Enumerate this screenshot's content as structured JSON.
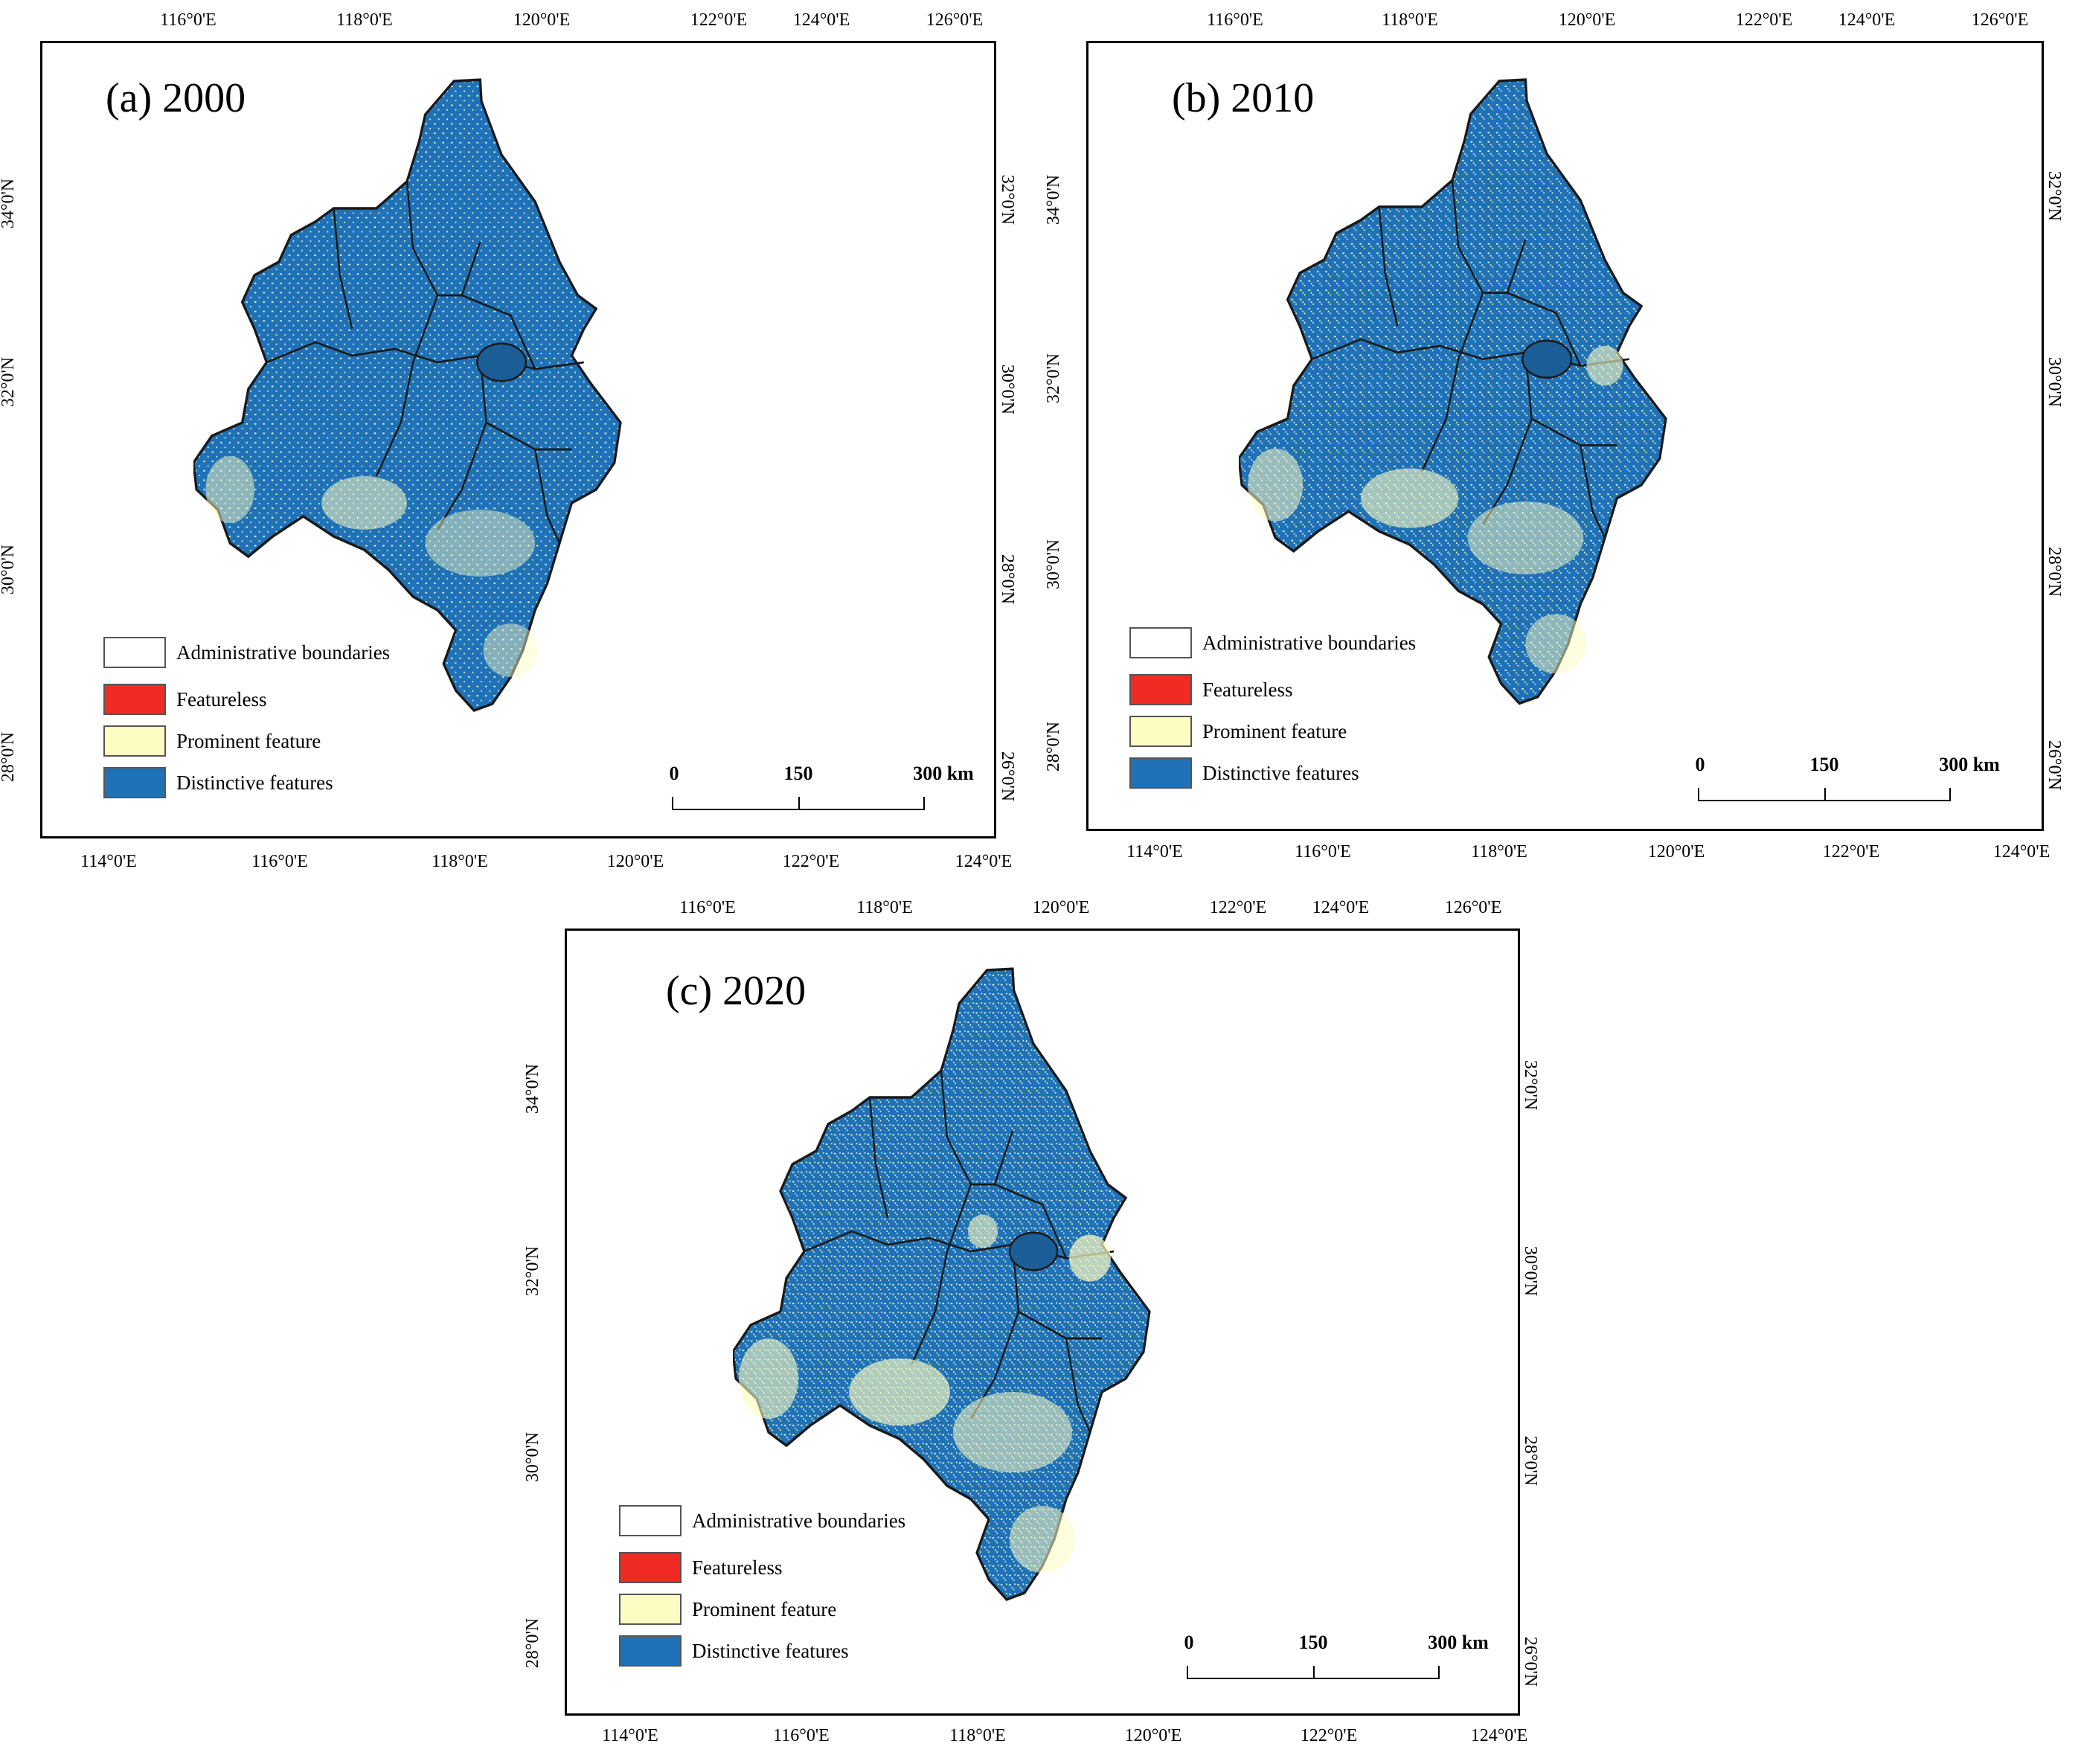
{
  "panels": [
    {
      "title": "(a) 2000",
      "top_ticks": [
        "116°0'E",
        "118°0'E",
        "120°0'E",
        "122°0'E",
        "124°0'E",
        "126°0'E"
      ],
      "bottom_ticks": [
        "114°0'E",
        "116°0'E",
        "118°0'E",
        "120°0'E",
        "122°0'E",
        "124°0'E"
      ],
      "left_ticks": [
        "34°0'N",
        "32°0'N",
        "30°0'N",
        "28°0'N"
      ],
      "right_ticks": [
        "32°0'N",
        "30°0'N",
        "28°0'N",
        "26°0'N"
      ],
      "legend": [
        {
          "label": "Administrative boundaries",
          "color": "#ffffff"
        },
        {
          "label": "Featureless",
          "color": "#ef2b24"
        },
        {
          "label": "Prominent feature",
          "color": "#fdfcc2"
        },
        {
          "label": "Distinctive features",
          "color": "#1f72b8"
        }
      ],
      "scale": {
        "labels": [
          "0",
          "150",
          "300 km"
        ]
      }
    },
    {
      "title": "(b) 2010",
      "top_ticks": [
        "116°0'E",
        "118°0'E",
        "120°0'E",
        "122°0'E",
        "124°0'E",
        "126°0'E"
      ],
      "bottom_ticks": [
        "114°0'E",
        "116°0'E",
        "118°0'E",
        "120°0'E",
        "122°0'E",
        "124°0'E"
      ],
      "left_ticks": [
        "34°0'N",
        "32°0'N",
        "30°0'N",
        "28°0'N"
      ],
      "right_ticks": [
        "32°0'N",
        "30°0'N",
        "28°0'N",
        "26°0'N"
      ],
      "legend": [
        {
          "label": "Administrative boundaries",
          "color": "#ffffff"
        },
        {
          "label": "Featureless",
          "color": "#ef2b24"
        },
        {
          "label": "Prominent feature",
          "color": "#fdfcc2"
        },
        {
          "label": "Distinctive features",
          "color": "#1f72b8"
        }
      ],
      "scale": {
        "labels": [
          "0",
          "150",
          "300 km"
        ]
      }
    },
    {
      "title": "(c) 2020",
      "top_ticks": [
        "116°0'E",
        "118°0'E",
        "120°0'E",
        "122°0'E",
        "124°0'E",
        "126°0'E"
      ],
      "bottom_ticks": [
        "114°0'E",
        "116°0'E",
        "118°0'E",
        "120°0'E",
        "122°0'E",
        "124°0'E"
      ],
      "left_ticks": [
        "34°0'N",
        "32°0'N",
        "30°0'N",
        "28°0'N"
      ],
      "right_ticks": [
        "32°0'N",
        "30°0'N",
        "28°0'N",
        "26°0'N"
      ],
      "legend": [
        {
          "label": "Administrative boundaries",
          "color": "#ffffff"
        },
        {
          "label": "Featureless",
          "color": "#ef2b24"
        },
        {
          "label": "Prominent feature",
          "color": "#fdfcc2"
        },
        {
          "label": "Distinctive features",
          "color": "#1f72b8"
        }
      ],
      "scale": {
        "labels": [
          "0",
          "150",
          "300 km"
        ]
      }
    }
  ]
}
